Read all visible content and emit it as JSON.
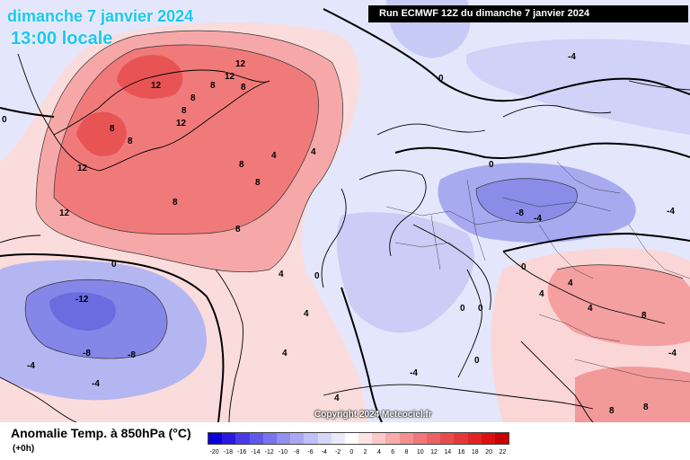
{
  "header": {
    "date_label": "dimanche 7 janvier 2024",
    "time_label": "13:00 locale",
    "run_label": "Run ECMWF 12Z du dimanche 7 janvier 2024"
  },
  "footer": {
    "copyright": "Copyright 2024 Meteociel.fr",
    "legend_title": "Anomalie Temp. à 850hPa (°C)",
    "legend_subtitle": "(+0h)"
  },
  "legend": {
    "ticks": [
      "-20",
      "-18",
      "-16",
      "-14",
      "-12",
      "-10",
      "-8",
      "-6",
      "-4",
      "-2",
      "0",
      "2",
      "4",
      "6",
      "8",
      "10",
      "12",
      "14",
      "16",
      "18",
      "20",
      "22"
    ],
    "colors": [
      "#0a00d8",
      "#2a18e0",
      "#4a3ae6",
      "#6058e8",
      "#7a74ec",
      "#9490f0",
      "#aaa8f4",
      "#c0c0f8",
      "#d6d6fa",
      "#eaeafc",
      "#ffffff",
      "#fde4e4",
      "#fcc8c8",
      "#f8acac",
      "#f49090",
      "#f07878",
      "#ec6262",
      "#e84c4c",
      "#e43838",
      "#e02424",
      "#dc1010",
      "#c80000"
    ]
  },
  "contour_labels": [
    {
      "text": "12"
    },
    {
      "text": "12"
    },
    {
      "text": "8"
    },
    {
      "text": "8"
    },
    {
      "text": "8"
    },
    {
      "text": "8"
    },
    {
      "text": "12"
    },
    {
      "text": "12"
    },
    {
      "text": "8"
    },
    {
      "text": "8"
    },
    {
      "text": "12"
    },
    {
      "text": "12"
    },
    {
      "text": "8"
    },
    {
      "text": "4"
    },
    {
      "text": "8"
    },
    {
      "text": "8"
    },
    {
      "text": "8"
    },
    {
      "text": "4"
    },
    {
      "text": "0"
    },
    {
      "text": "-12"
    },
    {
      "text": "-8"
    },
    {
      "text": "-8"
    },
    {
      "text": "-4"
    },
    {
      "text": "-4"
    },
    {
      "text": "0"
    },
    {
      "text": "-4"
    },
    {
      "text": "0"
    },
    {
      "text": "4"
    },
    {
      "text": "4"
    },
    {
      "text": "4"
    },
    {
      "text": "4"
    },
    {
      "text": "0"
    },
    {
      "text": "-4"
    },
    {
      "text": "-8"
    },
    {
      "text": "-4"
    },
    {
      "text": "-4"
    },
    {
      "text": "0"
    },
    {
      "text": "0"
    },
    {
      "text": "0"
    },
    {
      "text": "4"
    },
    {
      "text": "8"
    },
    {
      "text": "4"
    },
    {
      "text": "8"
    },
    {
      "text": "8"
    },
    {
      "text": "4"
    },
    {
      "text": "-4"
    },
    {
      "text": "0"
    },
    {
      "text": "0"
    }
  ]
}
